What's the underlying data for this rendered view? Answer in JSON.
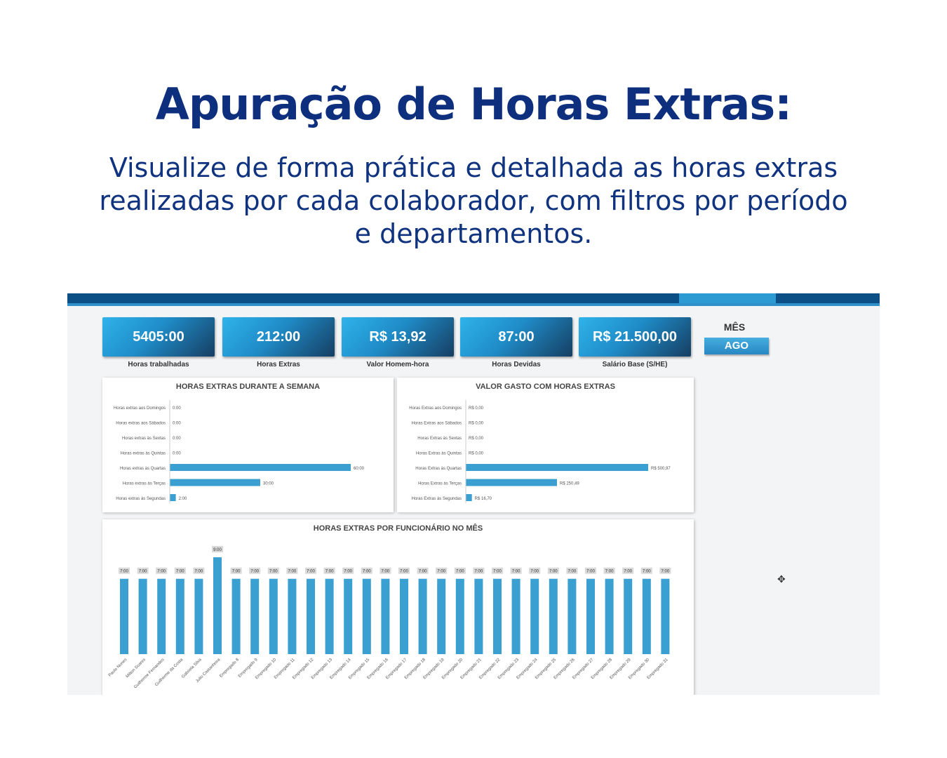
{
  "hero": {
    "title": "Apuração de Horas Extras:",
    "subtitle": "Visualize de forma prática e detalhada as horas extras realizadas por cada colaborador, com filtros por período e departamentos."
  },
  "kpis": [
    {
      "value": "5405:00",
      "label": "Horas trabalhadas"
    },
    {
      "value": "212:00",
      "label": "Horas Extras"
    },
    {
      "value": "R$ 13,92",
      "label": "Valor Homem-hora"
    },
    {
      "value": "87:00",
      "label": "Horas Devidas"
    },
    {
      "value": "R$ 21.500,00",
      "label": "Salário Base (S/HE)"
    }
  ],
  "month_filter": {
    "title": "MÊS",
    "selected": "AGO"
  },
  "colors": {
    "bar": "#3a9fd1",
    "kpi_start": "#2fb3ea",
    "kpi_end": "#163e62",
    "title": "#0d2f7e"
  },
  "cursor": {
    "icon": "move-cursor-icon",
    "glyph": "✥"
  },
  "chart_data": [
    {
      "type": "bar",
      "orientation": "horizontal",
      "title": "HORAS EXTRAS DURANTE A SEMANA",
      "categories": [
        "Horas extras aos Domingos",
        "Horas extras aos Sábados",
        "Horas extras às Sextas",
        "Horas extras às Quintas",
        "Horas extras às Quartas",
        "Horas extras às Terças",
        "Horas extras às Segundas"
      ],
      "values": [
        0,
        0,
        0,
        0,
        60,
        30,
        2
      ],
      "labels": [
        "0:00",
        "0:00",
        "0:00",
        "0:00",
        "60:00",
        "30:00",
        "2:00"
      ],
      "xlim": [
        0,
        60
      ]
    },
    {
      "type": "bar",
      "orientation": "horizontal",
      "title": "VALOR GASTO COM HORAS EXTRAS",
      "categories": [
        "Horas Extras aos Domingos",
        "Horas Extras aos Sábados",
        "Horas Extras às Sextas",
        "Horas Extras às Quintas",
        "Horas Extras às Quartas",
        "Horas Extras às Terças",
        "Horas Extras às Segundas"
      ],
      "values": [
        0,
        0,
        0,
        0,
        500.97,
        250.49,
        16.7
      ],
      "labels": [
        "R$ 0,00",
        "R$ 0,00",
        "R$ 0,00",
        "R$ 0,00",
        "R$ 500,97",
        "R$ 250,49",
        "R$ 16,70"
      ],
      "xlim": [
        0,
        500.97
      ]
    },
    {
      "type": "bar",
      "title": "HORAS EXTRAS POR FUNCIONÁRIO NO MÊS",
      "categories": [
        "Paulo Nunes",
        "Milton Soares",
        "Guilherme Fernandes",
        "Guilherme da Costa",
        "Gabriela Silva",
        "Julio Castanheira",
        "Empregado 8",
        "Empregado 9",
        "Empregado 10",
        "Empregado 11",
        "Empregado 12",
        "Empregado 13",
        "Empregado 14",
        "Empregado 15",
        "Empregado 16",
        "Empregado 17",
        "Empregado 18",
        "Empregado 19",
        "Empregado 20",
        "Empregado 21",
        "Empregado 22",
        "Empregado 23",
        "Empregado 24",
        "Empregado 25",
        "Empregado 26",
        "Empregado 27",
        "Empregado 28",
        "Empregado 29",
        "Empregado 30",
        "Empregado 31"
      ],
      "values": [
        7,
        7,
        7,
        7,
        7,
        9,
        7,
        7,
        7,
        7,
        7,
        7,
        7,
        7,
        7,
        7,
        7,
        7,
        7,
        7,
        7,
        7,
        7,
        7,
        7,
        7,
        7,
        7,
        7,
        7
      ],
      "labels": [
        "7:00",
        "7:00",
        "7:00",
        "7:00",
        "7:00",
        "9:00",
        "7:00",
        "7:00",
        "7:00",
        "7:00",
        "7:00",
        "7:00",
        "7:00",
        "7:00",
        "7:00",
        "7:00",
        "7:00",
        "7:00",
        "7:00",
        "7:00",
        "7:00",
        "7:00",
        "7:00",
        "7:00",
        "7:00",
        "7:00",
        "7:00",
        "7:00",
        "7:00",
        "7:00"
      ],
      "ylim": [
        0,
        9
      ]
    }
  ]
}
